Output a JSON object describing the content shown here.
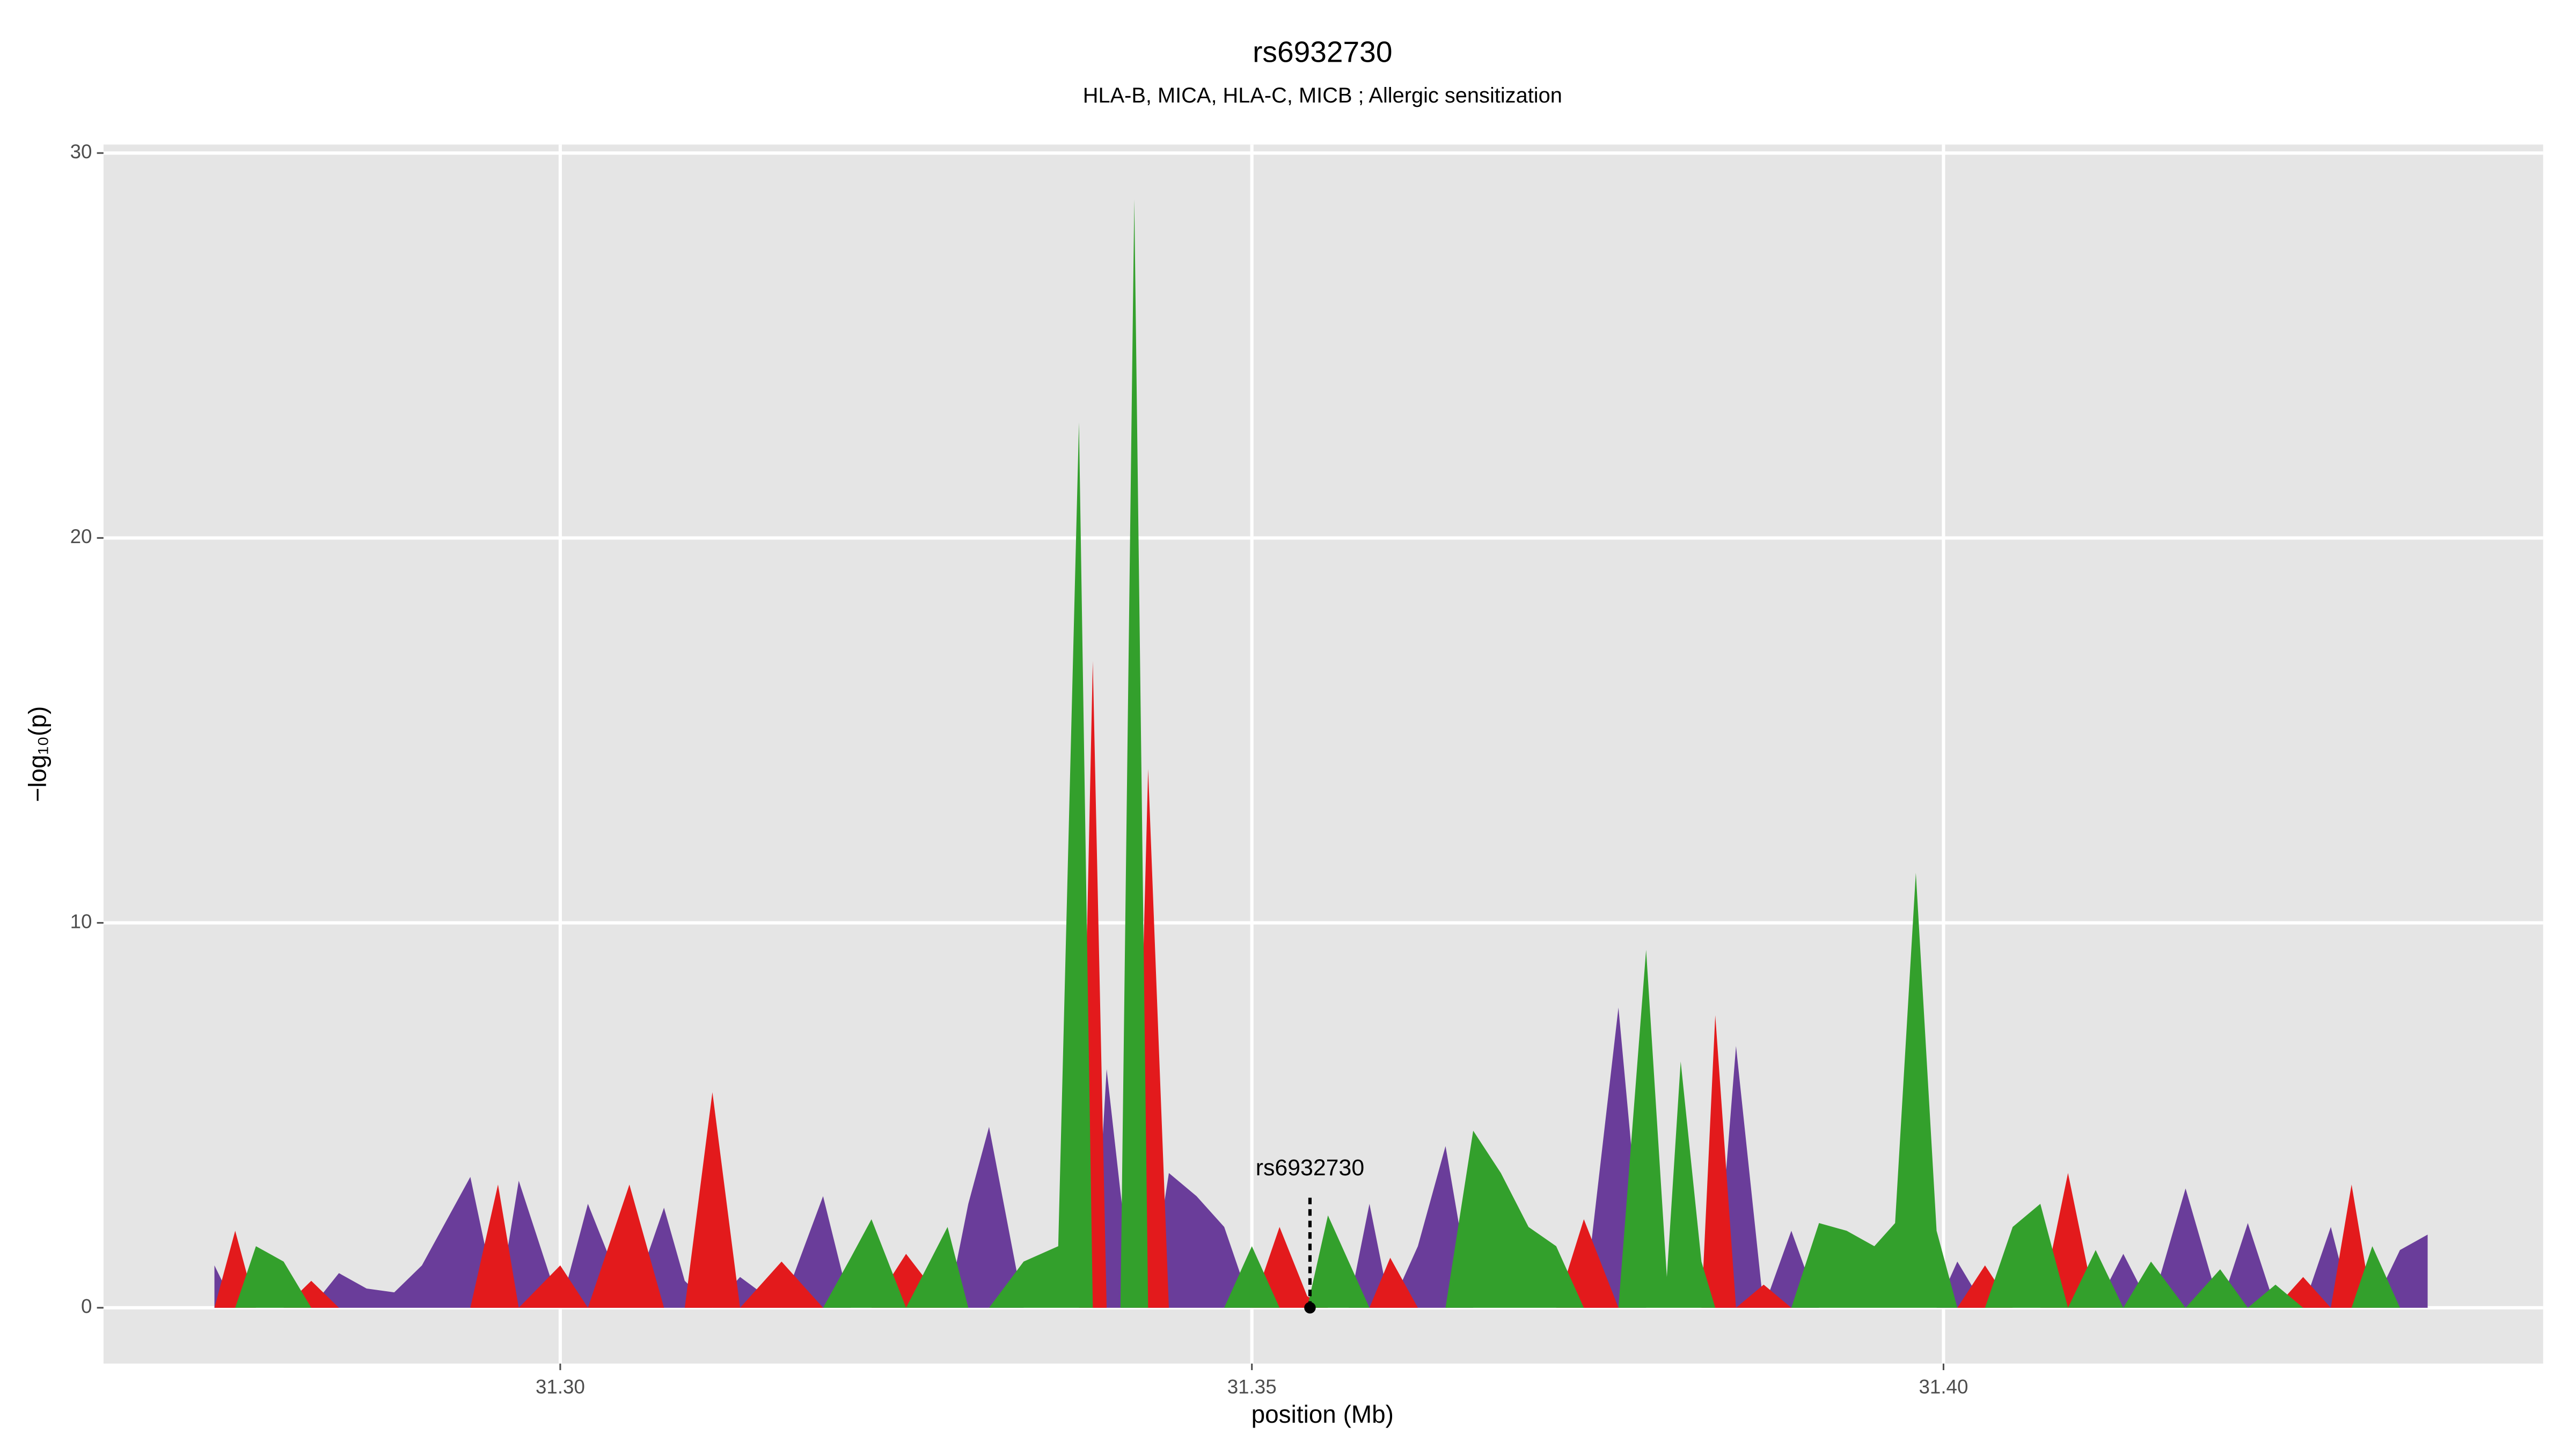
{
  "chart_data": {
    "type": "area",
    "title": "rs6932730",
    "subtitle": "HLA-B, MICA, HLA-C, MICB ; Allergic sensitization",
    "xlabel": "position (Mb)",
    "ylabel": "−log₁₀(p)",
    "xlim": [
      31.26698,
      31.44335
    ],
    "ylim": [
      -1.45,
      30.22
    ],
    "xticks": [
      {
        "value": 31.3,
        "label": "31.30"
      },
      31.35,
      {
        "value": 31.4,
        "label": "31.40"
      }
    ],
    "yticks": [
      0,
      10,
      20,
      30
    ],
    "grid": true,
    "background": "#e5e5e5",
    "x": [
      31.275,
      31.2765,
      31.278,
      31.28,
      31.282,
      31.284,
      31.286,
      31.288,
      31.29,
      31.2935,
      31.2955,
      31.297,
      31.3,
      31.302,
      31.305,
      31.3075,
      31.309,
      31.311,
      31.313,
      31.316,
      31.319,
      31.321,
      31.3225,
      31.325,
      31.328,
      31.3295,
      31.331,
      31.3335,
      31.336,
      31.3375,
      31.3385,
      31.3395,
      31.3405,
      31.3415,
      31.3425,
      31.344,
      31.346,
      31.348,
      31.35,
      31.352,
      31.354,
      31.3555,
      31.357,
      31.3585,
      31.36,
      31.362,
      31.364,
      31.366,
      31.368,
      31.37,
      31.372,
      31.374,
      31.3765,
      31.3785,
      31.38,
      31.381,
      31.3825,
      31.3835,
      31.385,
      31.387,
      31.389,
      31.391,
      31.393,
      31.395,
      31.3965,
      31.398,
      31.3995,
      31.401,
      31.403,
      31.405,
      31.407,
      31.409,
      31.411,
      31.413,
      31.415,
      31.4175,
      31.42,
      31.422,
      31.424,
      31.426,
      31.428,
      31.4295,
      31.431,
      31.433,
      31.435
    ],
    "series": [
      {
        "color": "#6a3d9a",
        "values": [
          1.1,
          0,
          0,
          0,
          0,
          0.9,
          0.5,
          0.4,
          1.1,
          3.4,
          0,
          3.3,
          0,
          2.7,
          0,
          2.6,
          0.7,
          0,
          0.8,
          0,
          2.9,
          0,
          0,
          0,
          0,
          2.7,
          4.7,
          0,
          0,
          0,
          0,
          6.2,
          3.0,
          0,
          0,
          3.5,
          2.9,
          2.1,
          0,
          0,
          0,
          0,
          0,
          2.7,
          0,
          1.6,
          4.2,
          0,
          0,
          0,
          0,
          0,
          7.8,
          0,
          0,
          0,
          0,
          0,
          6.8,
          0,
          2.0,
          0,
          0,
          0,
          0,
          0,
          0,
          1.2,
          0,
          0,
          0,
          0,
          0,
          1.4,
          0,
          3.1,
          0,
          2.2,
          0,
          0,
          2.1,
          0,
          0,
          1.5,
          1.9
        ]
      },
      {
        "color": "#e31a1c",
        "values": [
          0,
          2.0,
          0,
          0,
          0.7,
          0,
          0,
          0,
          0,
          0,
          3.2,
          0,
          1.1,
          0,
          3.2,
          0,
          0,
          5.6,
          0,
          1.2,
          0,
          0,
          0,
          1.4,
          0,
          0,
          0,
          0,
          0,
          0,
          16.8,
          0,
          0,
          0,
          14.0,
          0,
          0,
          0,
          0,
          2.1,
          0.3,
          0,
          0,
          0,
          1.3,
          0,
          0,
          0,
          0,
          0,
          0,
          2.3,
          0,
          0,
          0,
          0,
          0,
          7.6,
          0,
          0.6,
          0,
          0,
          0,
          0,
          0,
          0,
          0,
          0,
          1.1,
          0,
          0,
          3.5,
          0,
          0,
          0,
          0,
          0,
          0,
          0,
          0.8,
          0,
          3.2,
          0,
          0,
          0
        ]
      },
      {
        "color": "#33a02c",
        "values": [
          0,
          0,
          1.6,
          1.2,
          0,
          0,
          0,
          0,
          0,
          0,
          0,
          0,
          0,
          0,
          0,
          0,
          0,
          0,
          0,
          0,
          0,
          1.3,
          2.3,
          0,
          2.1,
          0,
          0,
          1.2,
          1.6,
          23.0,
          0,
          0,
          0,
          28.8,
          0,
          0,
          0,
          0,
          1.6,
          0,
          0,
          2.4,
          1.2,
          0,
          0,
          0,
          0,
          4.6,
          3.5,
          2.1,
          1.6,
          0,
          0,
          9.3,
          0.8,
          6.4,
          1.2,
          0,
          0,
          0,
          0,
          2.2,
          2.0,
          1.6,
          2.2,
          11.3,
          2.0,
          0,
          0,
          2.1,
          2.7,
          0,
          1.5,
          0,
          1.2,
          0,
          1.0,
          0,
          0.6,
          0,
          0,
          0,
          1.6,
          0,
          0
        ]
      }
    ],
    "annotation": {
      "label": "rs6932730",
      "x": 31.3542,
      "y": 0
    }
  }
}
